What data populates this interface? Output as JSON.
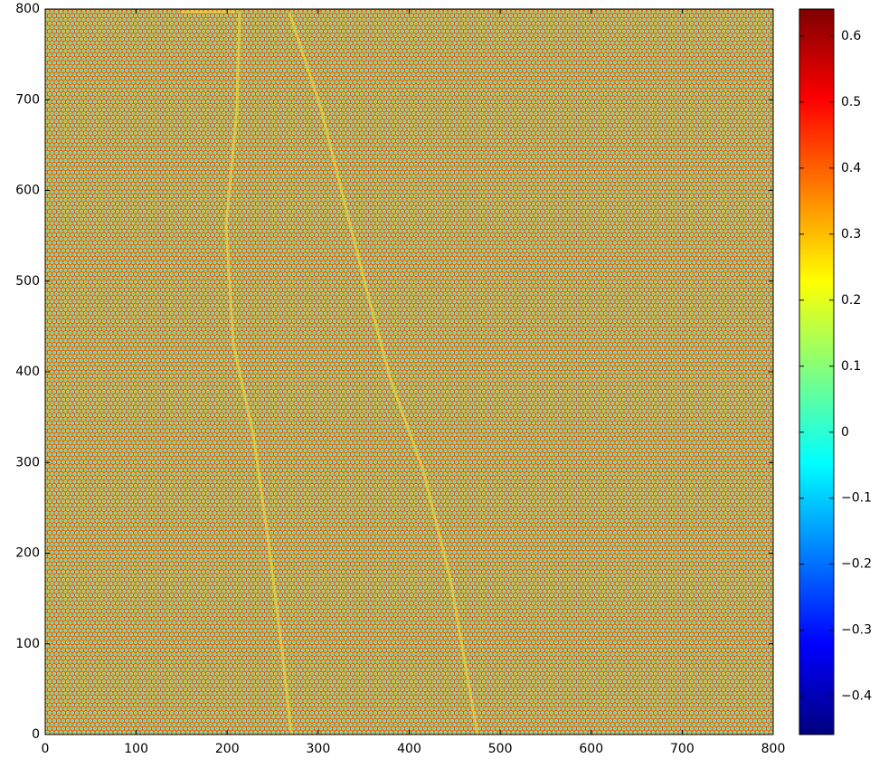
{
  "chart_data": {
    "type": "heatmap",
    "colormap": "jet",
    "xlim": [
      0,
      800
    ],
    "ylim": [
      0,
      800
    ],
    "xticks": [
      0,
      100,
      200,
      300,
      400,
      500,
      600,
      700,
      800
    ],
    "yticks": [
      0,
      100,
      200,
      300,
      400,
      500,
      600,
      700,
      800
    ],
    "clim": [
      -0.458,
      0.641
    ],
    "cticks": [
      {
        "value": -0.4,
        "label": "−0.4"
      },
      {
        "value": -0.3,
        "label": "−0.3"
      },
      {
        "value": -0.2,
        "label": "−0.2"
      },
      {
        "value": -0.1,
        "label": "−0.1"
      },
      0,
      0.1,
      0.2,
      0.3,
      0.4,
      0.5,
      0.6
    ]
  }
}
